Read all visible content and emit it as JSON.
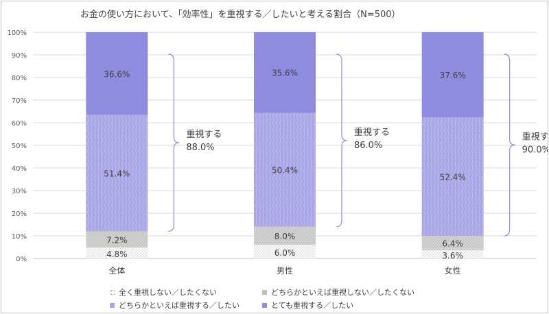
{
  "chart_data": {
    "type": "bar",
    "stacked": true,
    "title": "お金の使い方において、「効率性」を重視する／したいと考える割合（N=500）",
    "categories": [
      "全体",
      "男性",
      "女性"
    ],
    "ylim": [
      0,
      100
    ],
    "yticks": [
      "0%",
      "10%",
      "20%",
      "30%",
      "40%",
      "50%",
      "60%",
      "70%",
      "80%",
      "90%",
      "100%"
    ],
    "series": [
      {
        "name": "全く重視しない／したくない",
        "values": [
          4.8,
          6.0,
          3.6
        ],
        "labels": [
          "4.8%",
          "6.0%",
          "3.6%"
        ],
        "color": "#f2f2f2",
        "pattern": "dots-light"
      },
      {
        "name": "どちらかといえば重視しない／したくない",
        "values": [
          7.2,
          8.0,
          6.4
        ],
        "labels": [
          "7.2%",
          "8.0%",
          "6.4%"
        ],
        "color": "#bfbfbf",
        "pattern": "dots-dark"
      },
      {
        "name": "どちらかといえば重視する／したい",
        "values": [
          51.4,
          50.4,
          52.4
        ],
        "labels": [
          "51.4%",
          "50.4%",
          "52.4%"
        ],
        "color": "#a9a5e6",
        "pattern": "stripes"
      },
      {
        "name": "とても重視する／したい",
        "values": [
          36.6,
          35.6,
          37.6
        ],
        "labels": [
          "36.6%",
          "35.6%",
          "37.6%"
        ],
        "color": "#8f8ce0",
        "pattern": "solid"
      }
    ],
    "brackets": [
      {
        "label": "重視する",
        "value": "88.0%"
      },
      {
        "label": "重視する",
        "value": "86.0%"
      },
      {
        "label": "重視する",
        "value": "90.0%"
      }
    ]
  }
}
